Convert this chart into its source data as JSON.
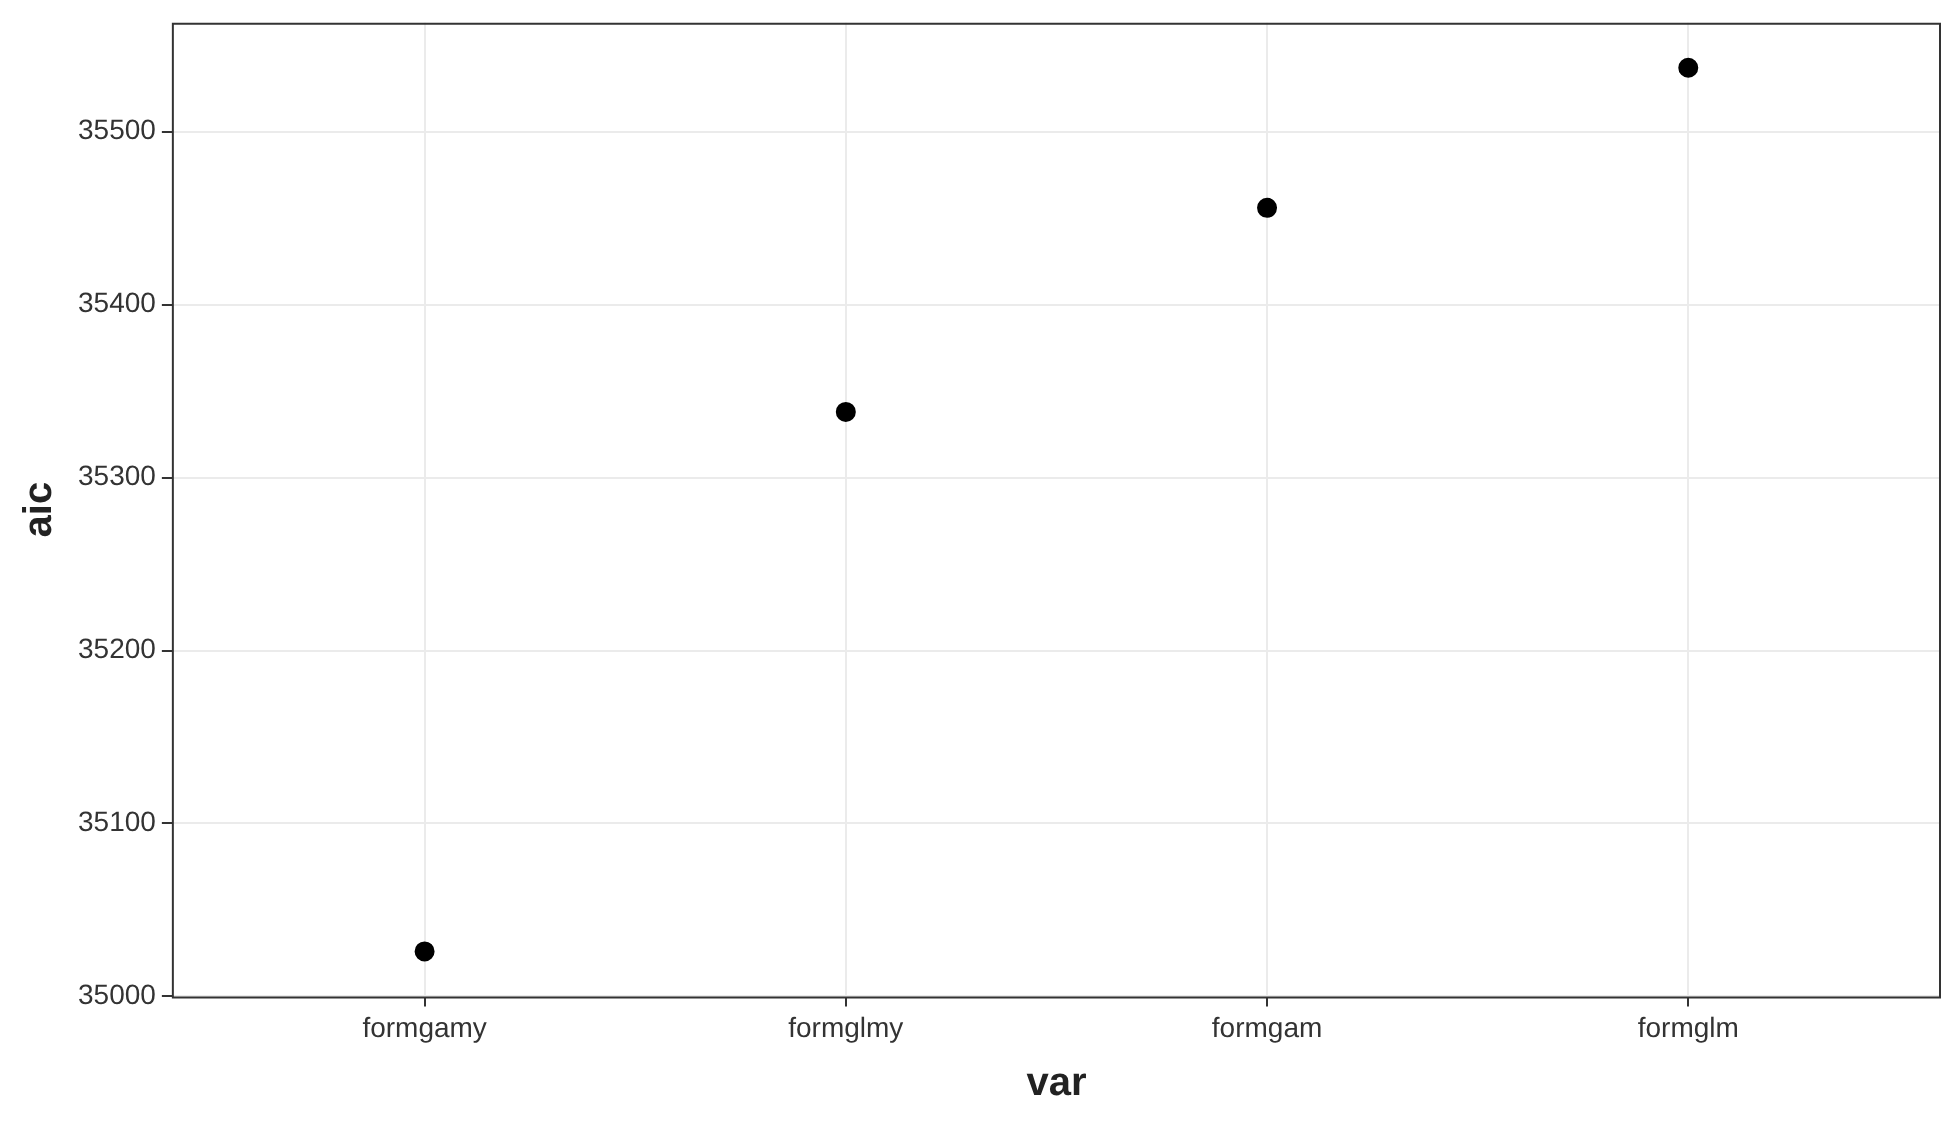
{
  "chart_data": {
    "type": "scatter",
    "xlabel": "var",
    "ylabel": "aic",
    "categories": [
      "formgamy",
      "formglmy",
      "formgam",
      "formglm"
    ],
    "series": [
      {
        "color": "#000000",
        "values": [
          35026,
          35338,
          35456,
          35537
        ]
      }
    ],
    "ylim": [
      35000,
      35563
    ],
    "yticks": [
      35000,
      35100,
      35200,
      35300,
      35400,
      35500
    ],
    "grid": true,
    "legend": false,
    "marker": "circle"
  }
}
